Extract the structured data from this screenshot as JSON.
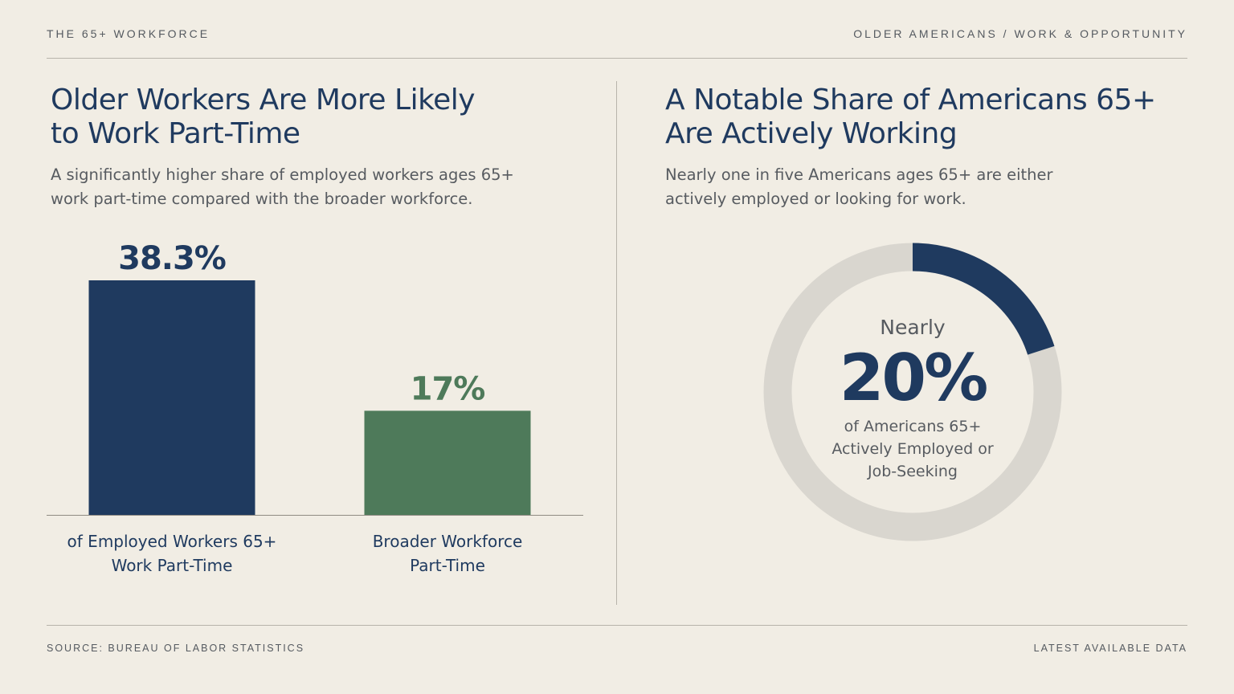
{
  "header": {
    "left": "THE 65+ WORKFORCE",
    "right": "OLDER AMERICANS / WORK & OPPORTUNITY"
  },
  "footer": {
    "source": "SOURCE: BUREAU OF LABOR STATISTICS",
    "note": "LATEST AVAILABLE DATA"
  },
  "colors": {
    "navy": "#1f3a5f",
    "green": "#4e7a5a",
    "track": "#d9d6cf",
    "gray_text": "#575b60"
  },
  "left_panel": {
    "title_lines": [
      "Older Workers Are More Likely",
      "to Work Part-Time"
    ],
    "subtitle_lines": [
      "A significantly higher share of employed workers ages 65+",
      "work part-time compared with the broader workforce."
    ]
  },
  "right_panel": {
    "title_lines": [
      "A Notable Share of Americans 65+",
      "Are Actively Working"
    ],
    "subtitle_lines": [
      "Nearly one in five Americans ages 65+ are either",
      "actively employed or looking for work."
    ],
    "donut": {
      "lead": "Nearly",
      "value_label": "20%",
      "description_lines": [
        "of Americans 65+",
        "Actively Employed or",
        "Job-Seeking"
      ]
    }
  },
  "chart_data": [
    {
      "type": "bar",
      "categories": [
        "of Employed Workers 65+ Work Part-Time",
        "Broader Workforce Part-Time"
      ],
      "category_lines": [
        [
          "of Employed Workers 65+",
          "Work Part-Time"
        ],
        [
          "Broader Workforce",
          "Part-Time"
        ]
      ],
      "values": [
        38.3,
        17
      ],
      "value_labels": [
        "38.3%",
        "17%"
      ],
      "colors": [
        "#1f3a5f",
        "#4e7a5a"
      ],
      "ylim": [
        0,
        38.3
      ],
      "grid": false,
      "legend": "none"
    },
    {
      "type": "pie",
      "style": "donut",
      "values": [
        20,
        80
      ],
      "colors": [
        "#1f3a5f",
        "#d9d6cf"
      ],
      "grid": false,
      "legend": "none"
    }
  ]
}
